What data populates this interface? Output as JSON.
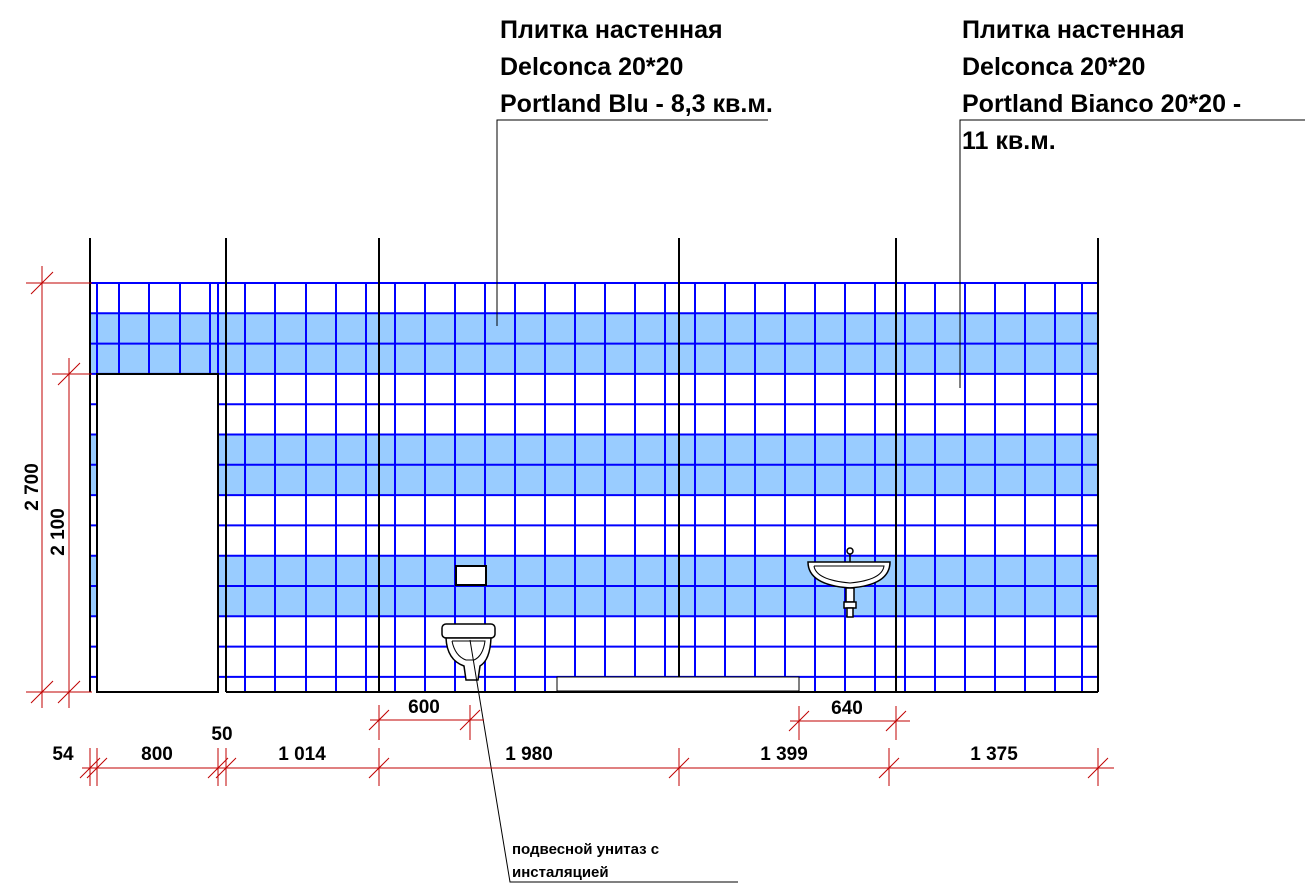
{
  "callouts": {
    "blu": {
      "line1": "Плитка настенная",
      "line2": "Delconca 20*20",
      "line3": "Portland Blu - 8,3 кв.м."
    },
    "bianco": {
      "line1": "Плитка настенная",
      "line2": "Delconca 20*20",
      "line3": "Portland Bianco 20*20 -",
      "line4": "11 кв.м."
    },
    "toilet": {
      "line1": "подвесной унитаз с",
      "line2": "инсталяцией"
    }
  },
  "dimensions": {
    "height_total": "2 700",
    "height_door": "2 100",
    "width_segments": [
      "54",
      "800",
      "50",
      "1 014",
      "1 980",
      "1 399",
      "1 375"
    ],
    "toilet_width": "600",
    "sink_width": "640"
  },
  "colors": {
    "tile_blue_fill": "#99ccff",
    "grout_lines": "#0000ff",
    "lines": "#000000"
  }
}
